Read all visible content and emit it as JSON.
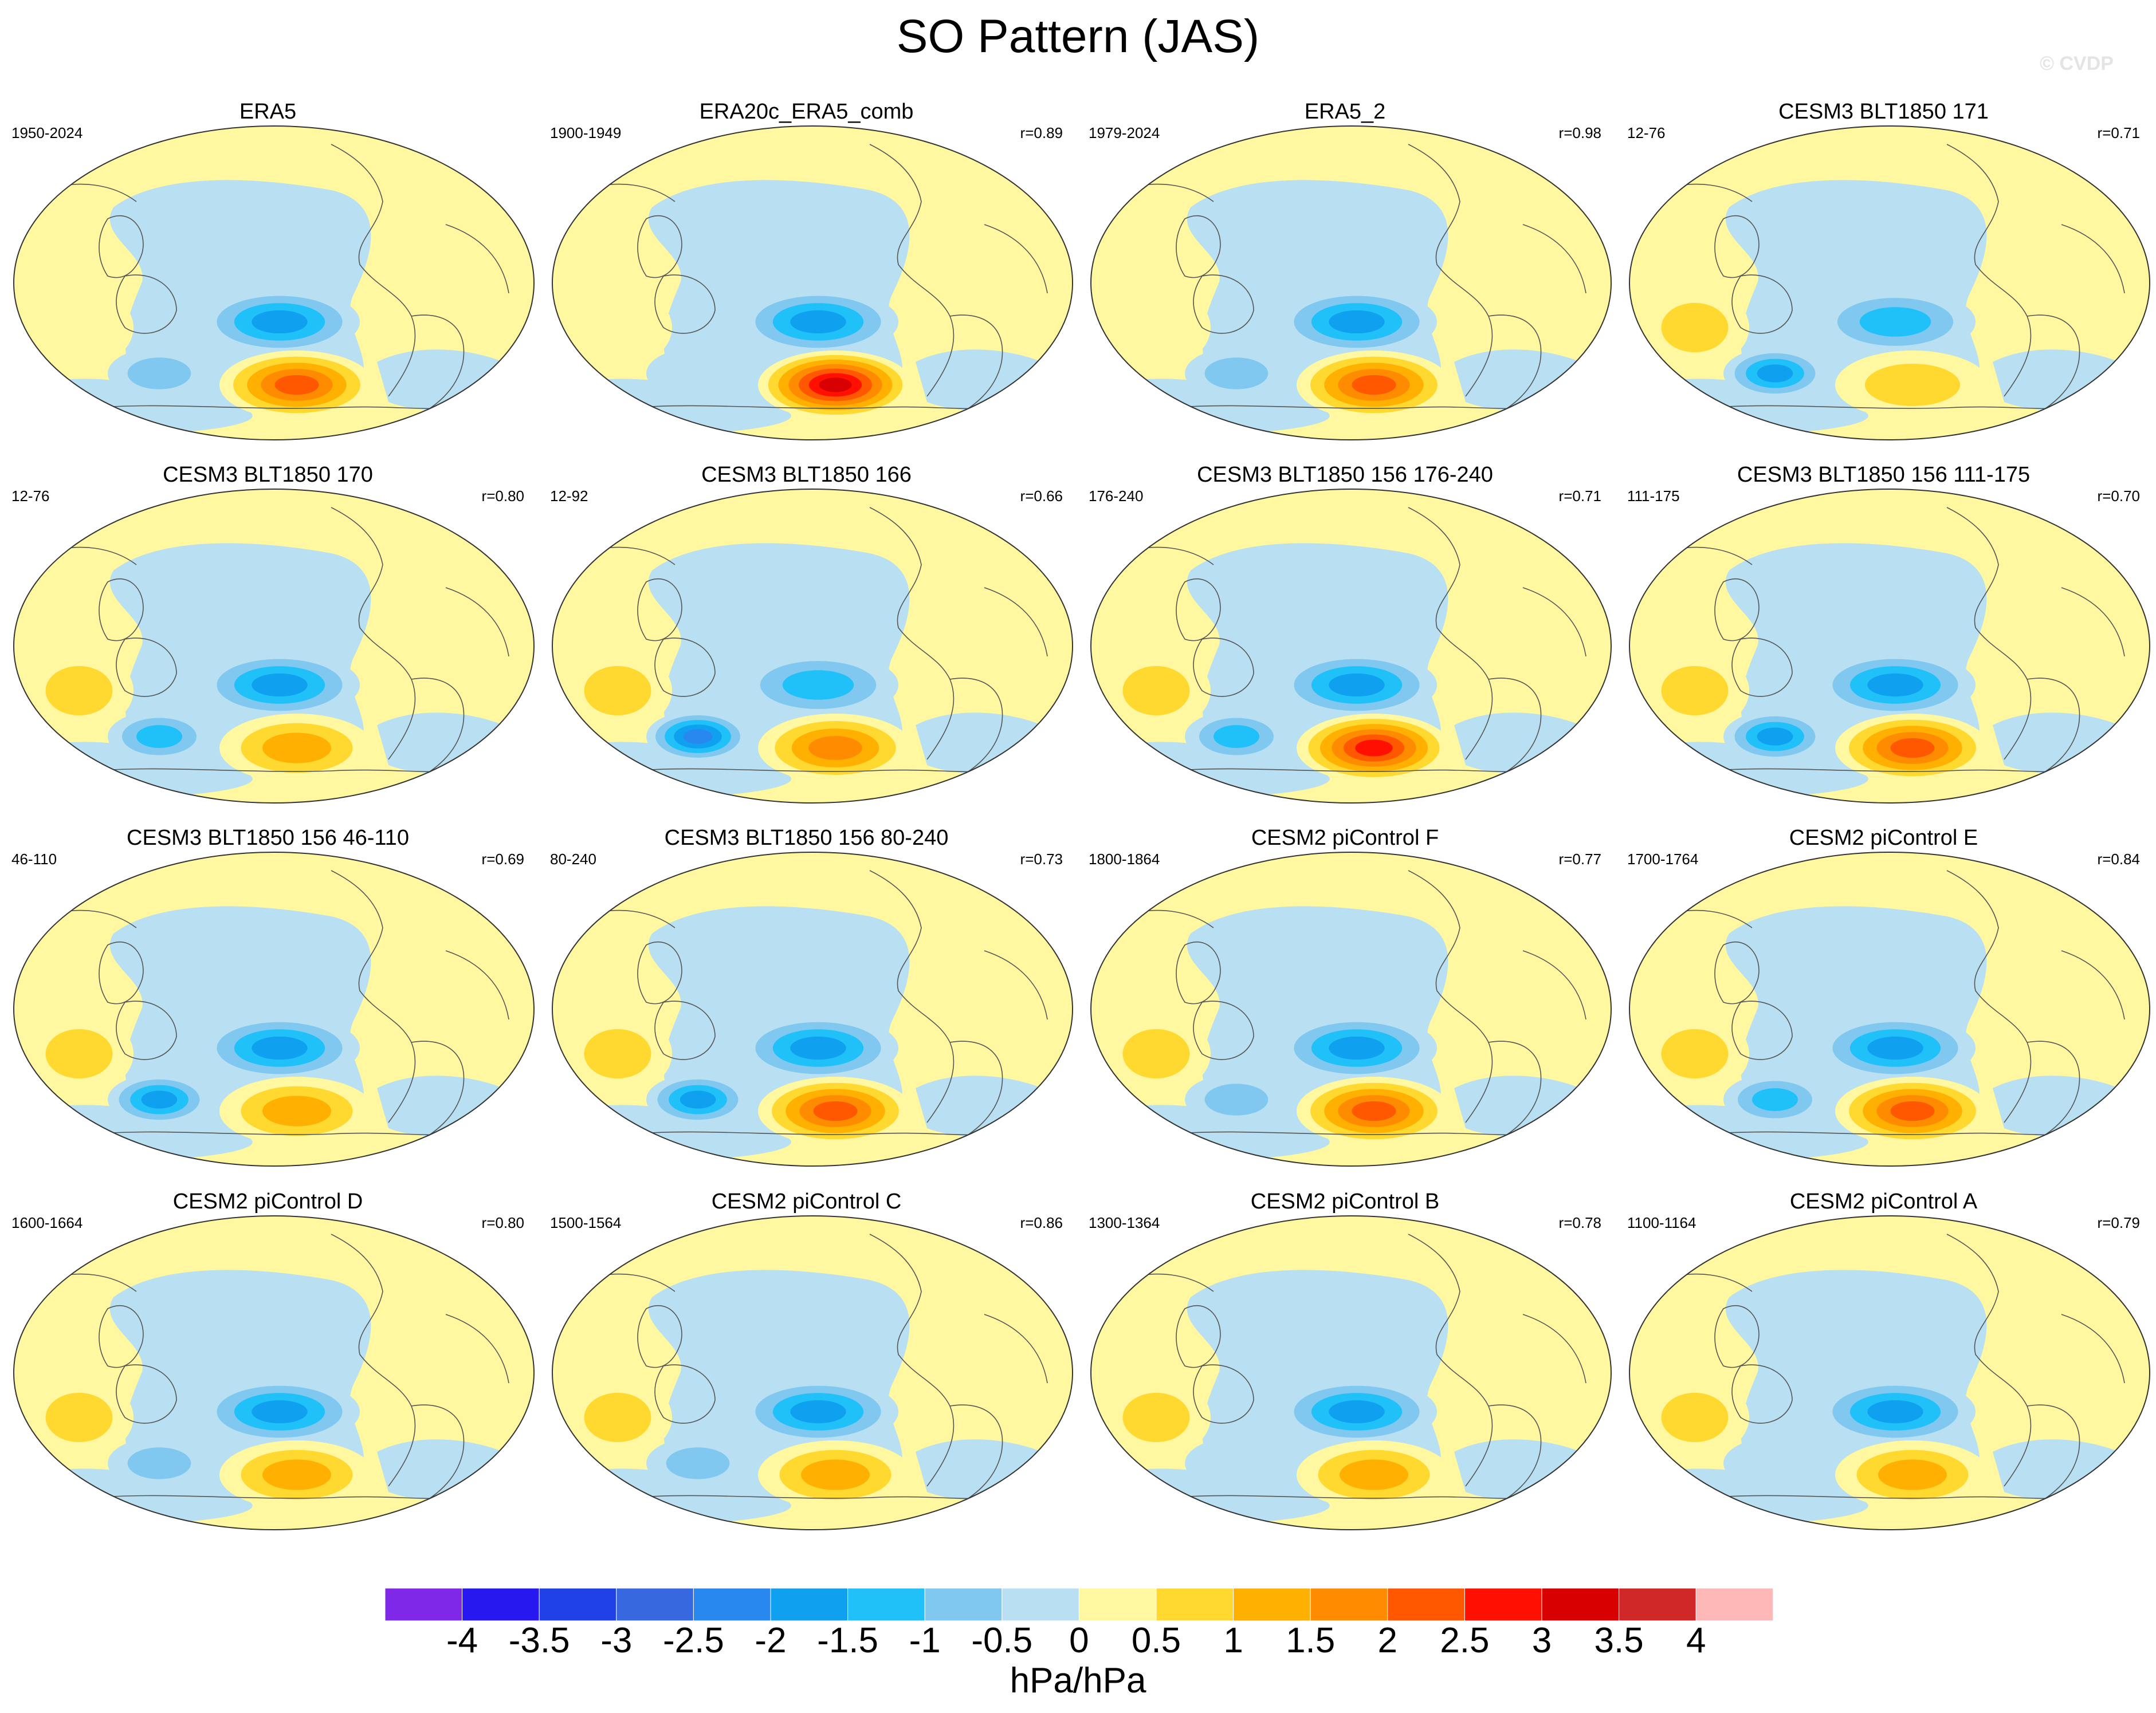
{
  "title": "SO Pattern (JAS)",
  "watermark": "© CVDP",
  "colorbar": {
    "ticks": [
      "-4",
      "-3.5",
      "-3",
      "-2.5",
      "-2",
      "-1.5",
      "-1",
      "-0.5",
      "0",
      "0.5",
      "1",
      "1.5",
      "2",
      "2.5",
      "3",
      "3.5",
      "4"
    ],
    "colors": [
      "#8028e8",
      "#2818f0",
      "#2040e8",
      "#3868e0",
      "#2888f0",
      "#10a0f0",
      "#20c0f8",
      "#80c8f0",
      "#b8e0f2",
      "#fff8a0",
      "#ffd830",
      "#ffb000",
      "#ff8c00",
      "#ff5800",
      "#ff1000",
      "#d80000",
      "#d02828",
      "#ffb8b8"
    ],
    "units": "hPa/hPa"
  },
  "panels": [
    {
      "title": "ERA5",
      "years": "1950-2024",
      "corr": "",
      "hi": 2.5,
      "lo": -2.0,
      "south": -1.0,
      "ind": 0.5
    },
    {
      "title": "ERA20c_ERA5_comb",
      "years": "1900-1949",
      "corr": "r=0.89",
      "hi": 3.5,
      "lo": -2.0,
      "south": -0.5,
      "ind": 0.5
    },
    {
      "title": "ERA5_2",
      "years": "1979-2024",
      "corr": "r=0.98",
      "hi": 2.5,
      "lo": -2.0,
      "south": -1.0,
      "ind": 0.5
    },
    {
      "title": "CESM3 BLT1850 171",
      "years": "12-76",
      "corr": "r=0.71",
      "hi": 1.0,
      "lo": -1.5,
      "south": -2.0,
      "ind": 1.0
    },
    {
      "title": "CESM3 BLT1850 170",
      "years": "12-76",
      "corr": "r=0.80",
      "hi": 1.5,
      "lo": -2.0,
      "south": -1.5,
      "ind": 1.0
    },
    {
      "title": "CESM3 BLT1850 166",
      "years": "12-92",
      "corr": "r=0.66",
      "hi": 2.0,
      "lo": -1.5,
      "south": -2.5,
      "ind": 1.0
    },
    {
      "title": "CESM3 BLT1850 156 176-240",
      "years": "176-240",
      "corr": "r=0.71",
      "hi": 3.0,
      "lo": -2.0,
      "south": -1.5,
      "ind": 1.0
    },
    {
      "title": "CESM3 BLT1850 156 111-175",
      "years": "111-175",
      "corr": "r=0.70",
      "hi": 2.5,
      "lo": -2.0,
      "south": -2.0,
      "ind": 1.0
    },
    {
      "title": "CESM3 BLT1850 156 46-110",
      "years": "46-110",
      "corr": "r=0.69",
      "hi": 1.5,
      "lo": -2.0,
      "south": -2.0,
      "ind": 1.0
    },
    {
      "title": "CESM3 BLT1850 156 80-240",
      "years": "80-240",
      "corr": "r=0.73",
      "hi": 2.5,
      "lo": -2.0,
      "south": -2.0,
      "ind": 1.0
    },
    {
      "title": "CESM2 piControl F",
      "years": "1800-1864",
      "corr": "r=0.77",
      "hi": 2.5,
      "lo": -2.0,
      "south": -1.0,
      "ind": 1.0
    },
    {
      "title": "CESM2 piControl E",
      "years": "1700-1764",
      "corr": "r=0.84",
      "hi": 2.5,
      "lo": -2.0,
      "south": -1.5,
      "ind": 1.0
    },
    {
      "title": "CESM2 piControl D",
      "years": "1600-1664",
      "corr": "r=0.80",
      "hi": 1.5,
      "lo": -2.0,
      "south": -1.0,
      "ind": 1.0
    },
    {
      "title": "CESM2 piControl C",
      "years": "1500-1564",
      "corr": "r=0.86",
      "hi": 1.5,
      "lo": -2.0,
      "south": -1.0,
      "ind": 1.0
    },
    {
      "title": "CESM2 piControl B",
      "years": "1300-1364",
      "corr": "r=0.78",
      "hi": 1.5,
      "lo": -2.0,
      "south": -0.5,
      "ind": 1.0
    },
    {
      "title": "CESM2 piControl A",
      "years": "1100-1164",
      "corr": "r=0.79",
      "hi": 1.5,
      "lo": -2.0,
      "south": -0.5,
      "ind": 1.0
    }
  ]
}
